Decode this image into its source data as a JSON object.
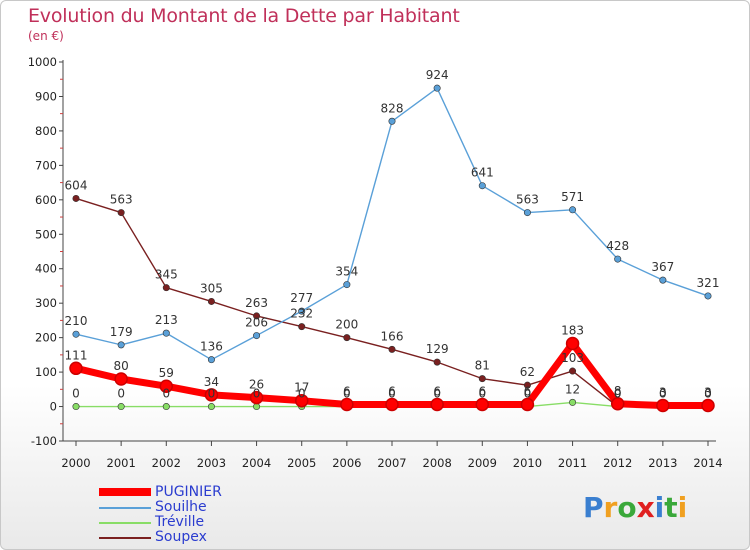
{
  "header": {
    "title": "Evolution du Montant de la Dette par Habitant",
    "subtitle": "(en €)"
  },
  "logo": {
    "text": "Proxiti",
    "colors": [
      "#3a7fd0",
      "#f0a020",
      "#3aa83a",
      "#e02020",
      "#3a7fd0",
      "#3aa83a",
      "#f0a020"
    ]
  },
  "chart_data": {
    "type": "line",
    "title": "Evolution du Montant de la Dette par Habitant",
    "subtitle": "(en €)",
    "xlabel": "",
    "ylabel": "",
    "x": [
      "2000",
      "2001",
      "2002",
      "2003",
      "2004",
      "2005",
      "2006",
      "2007",
      "2008",
      "2009",
      "2010",
      "2011",
      "2012",
      "2013",
      "2014"
    ],
    "ylim": [
      -100,
      1000
    ],
    "yticks": [
      -100,
      0,
      100,
      200,
      300,
      400,
      500,
      600,
      700,
      800,
      900,
      1000
    ],
    "grid": false,
    "legend_position": "bottom-left",
    "series": [
      {
        "name": "PUGINIER",
        "color": "#ff0000",
        "values": [
          111,
          80,
          59,
          34,
          26,
          17,
          6,
          6,
          6,
          6,
          6,
          183,
          8,
          3,
          3
        ],
        "labels": [
          "111",
          "80",
          "59",
          "34",
          "26",
          "17",
          "6",
          "6",
          "6",
          "6",
          "6",
          "183",
          "8",
          "3",
          "3"
        ]
      },
      {
        "name": "Souilhe",
        "color": "#5aa0d8",
        "values": [
          210,
          179,
          213,
          136,
          206,
          277,
          354,
          828,
          924,
          641,
          563,
          571,
          428,
          367,
          321
        ],
        "labels": [
          "210",
          "179",
          "213",
          "136",
          "206",
          "277",
          "354",
          "828",
          "924",
          "641",
          "563",
          "571",
          "428",
          "367",
          "321"
        ]
      },
      {
        "name": "Tréville",
        "color": "#88dd66",
        "values": [
          0,
          0,
          0,
          0,
          0,
          0,
          0,
          0,
          0,
          0,
          0,
          12,
          0,
          0,
          0
        ],
        "labels": [
          "0",
          "0",
          "0",
          "0",
          "0",
          "0",
          "0",
          "0",
          "0",
          "0",
          "0",
          "12",
          "0",
          "0",
          "0"
        ]
      },
      {
        "name": "Soupex",
        "color": "#7a2020",
        "values": [
          604,
          563,
          345,
          305,
          263,
          232,
          200,
          166,
          129,
          81,
          62,
          103,
          0,
          0,
          0
        ],
        "labels": [
          "604",
          "563",
          "345",
          "305",
          "263",
          "232",
          "200",
          "166",
          "129",
          "81",
          "62",
          "103",
          "0",
          "0",
          "0"
        ]
      }
    ]
  }
}
